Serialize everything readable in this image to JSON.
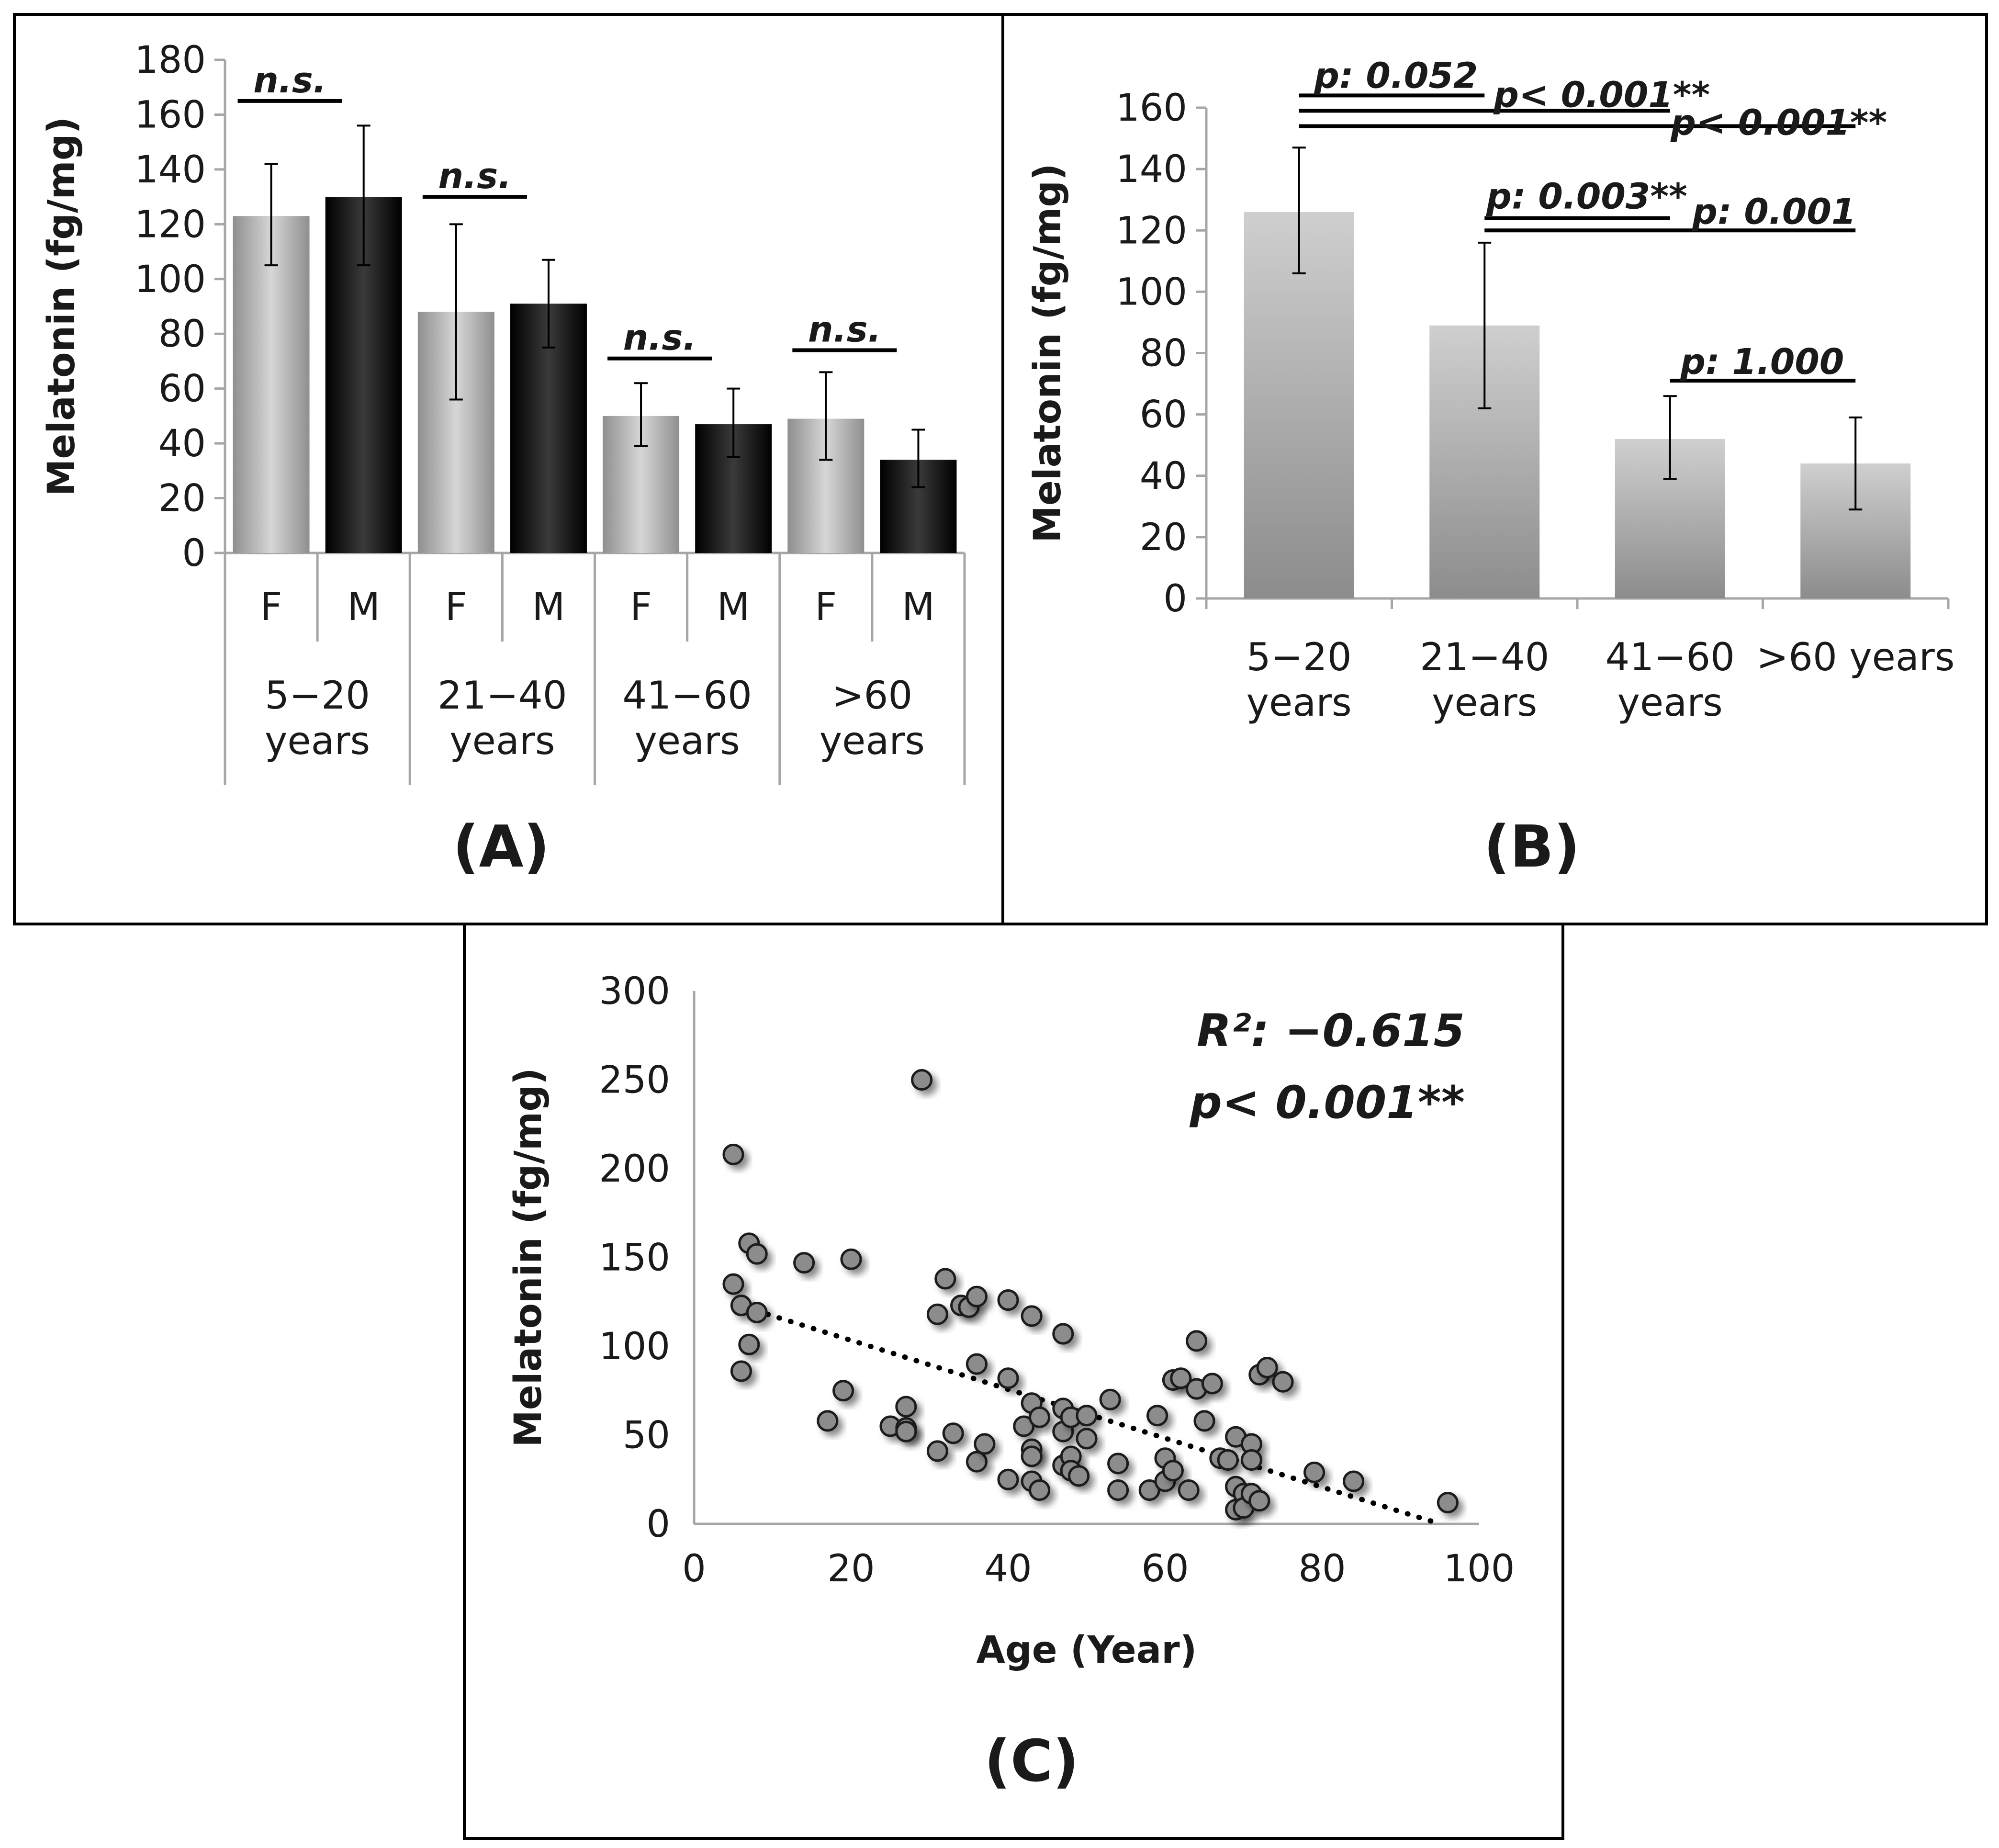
{
  "panels": {
    "a": {
      "letter": "(A)"
    },
    "b": {
      "letter": "(B)"
    },
    "c": {
      "letter": "(C)"
    }
  },
  "chart_data": [
    {
      "id": "A",
      "type": "bar",
      "ylabel": "Melatonin (fg/mg)",
      "ylim": [
        0,
        180
      ],
      "yticks": [
        0,
        20,
        40,
        60,
        80,
        100,
        120,
        140,
        160,
        180
      ],
      "groups": [
        {
          "line1": "5−20",
          "line2": "years"
        },
        {
          "line1": "21−40",
          "line2": "years"
        },
        {
          "line1": "41−60",
          "line2": "years"
        },
        {
          "line1": ">60",
          "line2": "years"
        }
      ],
      "categories": [
        "F",
        "M",
        "F",
        "M",
        "F",
        "M",
        "F",
        "M"
      ],
      "values": [
        123,
        130,
        88,
        91,
        50,
        47,
        49,
        34
      ],
      "err_low": [
        105,
        105,
        56,
        75,
        39,
        35,
        34,
        24
      ],
      "err_high": [
        142,
        156,
        120,
        107,
        62,
        60,
        66,
        45
      ],
      "colors": {
        "F": "#b8b8b8",
        "M": "#141414"
      },
      "annotations": [
        {
          "text": "n.s.",
          "group": 0,
          "y": 165
        },
        {
          "text": "n.s.",
          "group": 1,
          "y": 130
        },
        {
          "text": "n.s.",
          "group": 2,
          "y": 71
        },
        {
          "text": "n.s.",
          "group": 3,
          "y": 74
        }
      ]
    },
    {
      "id": "B",
      "type": "bar",
      "ylabel": "Melatonin (fg/mg)",
      "ylim": [
        0,
        160
      ],
      "yticks": [
        0,
        20,
        40,
        60,
        80,
        100,
        120,
        140,
        160
      ],
      "categories": [
        {
          "line1": "5−20",
          "line2": "years"
        },
        {
          "line1": "21−40",
          "line2": "years"
        },
        {
          "line1": "41−60",
          "line2": "years"
        },
        {
          "line1": ">60 years",
          "line2": ""
        }
      ],
      "values": [
        126,
        89,
        52,
        44
      ],
      "err_low": [
        106,
        62,
        39,
        29
      ],
      "err_high": [
        147,
        116,
        66,
        59
      ],
      "color": "#a3a3a3",
      "comparisons": [
        {
          "from": 0,
          "to": 1,
          "y": 164,
          "text": "p: 0.052"
        },
        {
          "from": 0,
          "to": 2,
          "y": 159,
          "text": "p< 0.001**"
        },
        {
          "from": 0,
          "to": 3,
          "y": 154,
          "text": "p< 0.001**"
        },
        {
          "from": 1,
          "to": 2,
          "y": 124,
          "text": "p: 0.003**"
        },
        {
          "from": 1,
          "to": 3,
          "y": 120,
          "text": "p: 0.001"
        },
        {
          "from": 2,
          "to": 3,
          "y": 71,
          "text": "p: 1.000"
        }
      ]
    },
    {
      "id": "C",
      "type": "scatter",
      "xlabel": "Age (Year)",
      "ylabel": "Melatonin (fg/mg)",
      "xlim": [
        0,
        100
      ],
      "ylim": [
        0,
        300
      ],
      "xticks": [
        0,
        20,
        40,
        60,
        80,
        100
      ],
      "yticks": [
        0,
        50,
        100,
        150,
        200,
        250,
        300
      ],
      "stat_line1": "R²: −0.615",
      "stat_line2": "p< 0.001**",
      "trendline": {
        "x": [
          5,
          95
        ],
        "y": [
          124,
          0
        ],
        "style": "dotted"
      },
      "points": [
        [
          5,
          208
        ],
        [
          5,
          135
        ],
        [
          6,
          86
        ],
        [
          6,
          123
        ],
        [
          7,
          158
        ],
        [
          7,
          101
        ],
        [
          8,
          152
        ],
        [
          8,
          119
        ],
        [
          14,
          147
        ],
        [
          17,
          58
        ],
        [
          19,
          75
        ],
        [
          20,
          149
        ],
        [
          25,
          55
        ],
        [
          27,
          66
        ],
        [
          27,
          54
        ],
        [
          27,
          52
        ],
        [
          29,
          250
        ],
        [
          31,
          118
        ],
        [
          31,
          41
        ],
        [
          32,
          138
        ],
        [
          33,
          51
        ],
        [
          34,
          123
        ],
        [
          35,
          122
        ],
        [
          36,
          128
        ],
        [
          36,
          90
        ],
        [
          36,
          35
        ],
        [
          37,
          45
        ],
        [
          40,
          126
        ],
        [
          40,
          82
        ],
        [
          40,
          25
        ],
        [
          42,
          55
        ],
        [
          43,
          117
        ],
        [
          43,
          68
        ],
        [
          43,
          42
        ],
        [
          43,
          38
        ],
        [
          43,
          24
        ],
        [
          44,
          60
        ],
        [
          44,
          19
        ],
        [
          47,
          107
        ],
        [
          47,
          65
        ],
        [
          47,
          52
        ],
        [
          47,
          33
        ],
        [
          48,
          60
        ],
        [
          48,
          38
        ],
        [
          48,
          30
        ],
        [
          49,
          27
        ],
        [
          50,
          61
        ],
        [
          50,
          48
        ],
        [
          53,
          70
        ],
        [
          54,
          34
        ],
        [
          54,
          19
        ],
        [
          58,
          19
        ],
        [
          59,
          61
        ],
        [
          60,
          37
        ],
        [
          60,
          24
        ],
        [
          61,
          81
        ],
        [
          61,
          30
        ],
        [
          62,
          82
        ],
        [
          63,
          19
        ],
        [
          64,
          103
        ],
        [
          64,
          76
        ],
        [
          65,
          58
        ],
        [
          66,
          79
        ],
        [
          67,
          37
        ],
        [
          68,
          36
        ],
        [
          69,
          49
        ],
        [
          69,
          21
        ],
        [
          69,
          8
        ],
        [
          70,
          17
        ],
        [
          70,
          9
        ],
        [
          71,
          45
        ],
        [
          71,
          36
        ],
        [
          71,
          17
        ],
        [
          72,
          84
        ],
        [
          72,
          13
        ],
        [
          73,
          88
        ],
        [
          75,
          80
        ],
        [
          79,
          29
        ],
        [
          84,
          24
        ],
        [
          96,
          12
        ]
      ]
    }
  ]
}
